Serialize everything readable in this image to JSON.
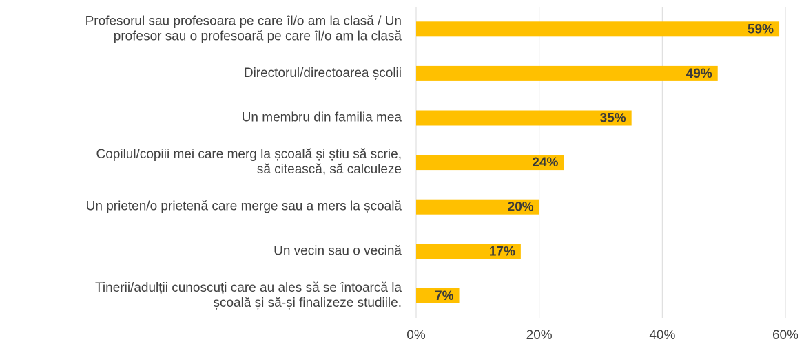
{
  "chart_data": {
    "type": "bar",
    "orientation": "horizontal",
    "categories": [
      [
        "Profesorul sau profesoara pe care îl/o am la clasă / Un",
        "profesor sau o profesoară pe care îl/o am la clasă"
      ],
      [
        "Directorul/directoarea școlii"
      ],
      [
        "Un membru din familia mea"
      ],
      [
        "Copilul/copiii mei care merg la școală și știu să scrie,",
        "să citească, să calculeze"
      ],
      [
        "Un prieten/o prietenă care merge sau a mers la școală"
      ],
      [
        "Un vecin sau o vecină"
      ],
      [
        "Tinerii/adulții cunoscuți care au ales să se întoarcă la",
        "școală și să-și finalizeze studiile."
      ]
    ],
    "values": [
      59,
      49,
      35,
      24,
      20,
      17,
      7
    ],
    "value_labels": [
      "59%",
      "49%",
      "35%",
      "24%",
      "20%",
      "17%",
      "7%"
    ],
    "color": "#FFC000",
    "xlim": [
      0,
      60
    ],
    "xticks": [
      {
        "value": 0,
        "label": "0%"
      },
      {
        "value": 20,
        "label": "20%"
      },
      {
        "value": 40,
        "label": "40%"
      },
      {
        "value": 60,
        "label": "60%"
      }
    ],
    "grid": true
  }
}
